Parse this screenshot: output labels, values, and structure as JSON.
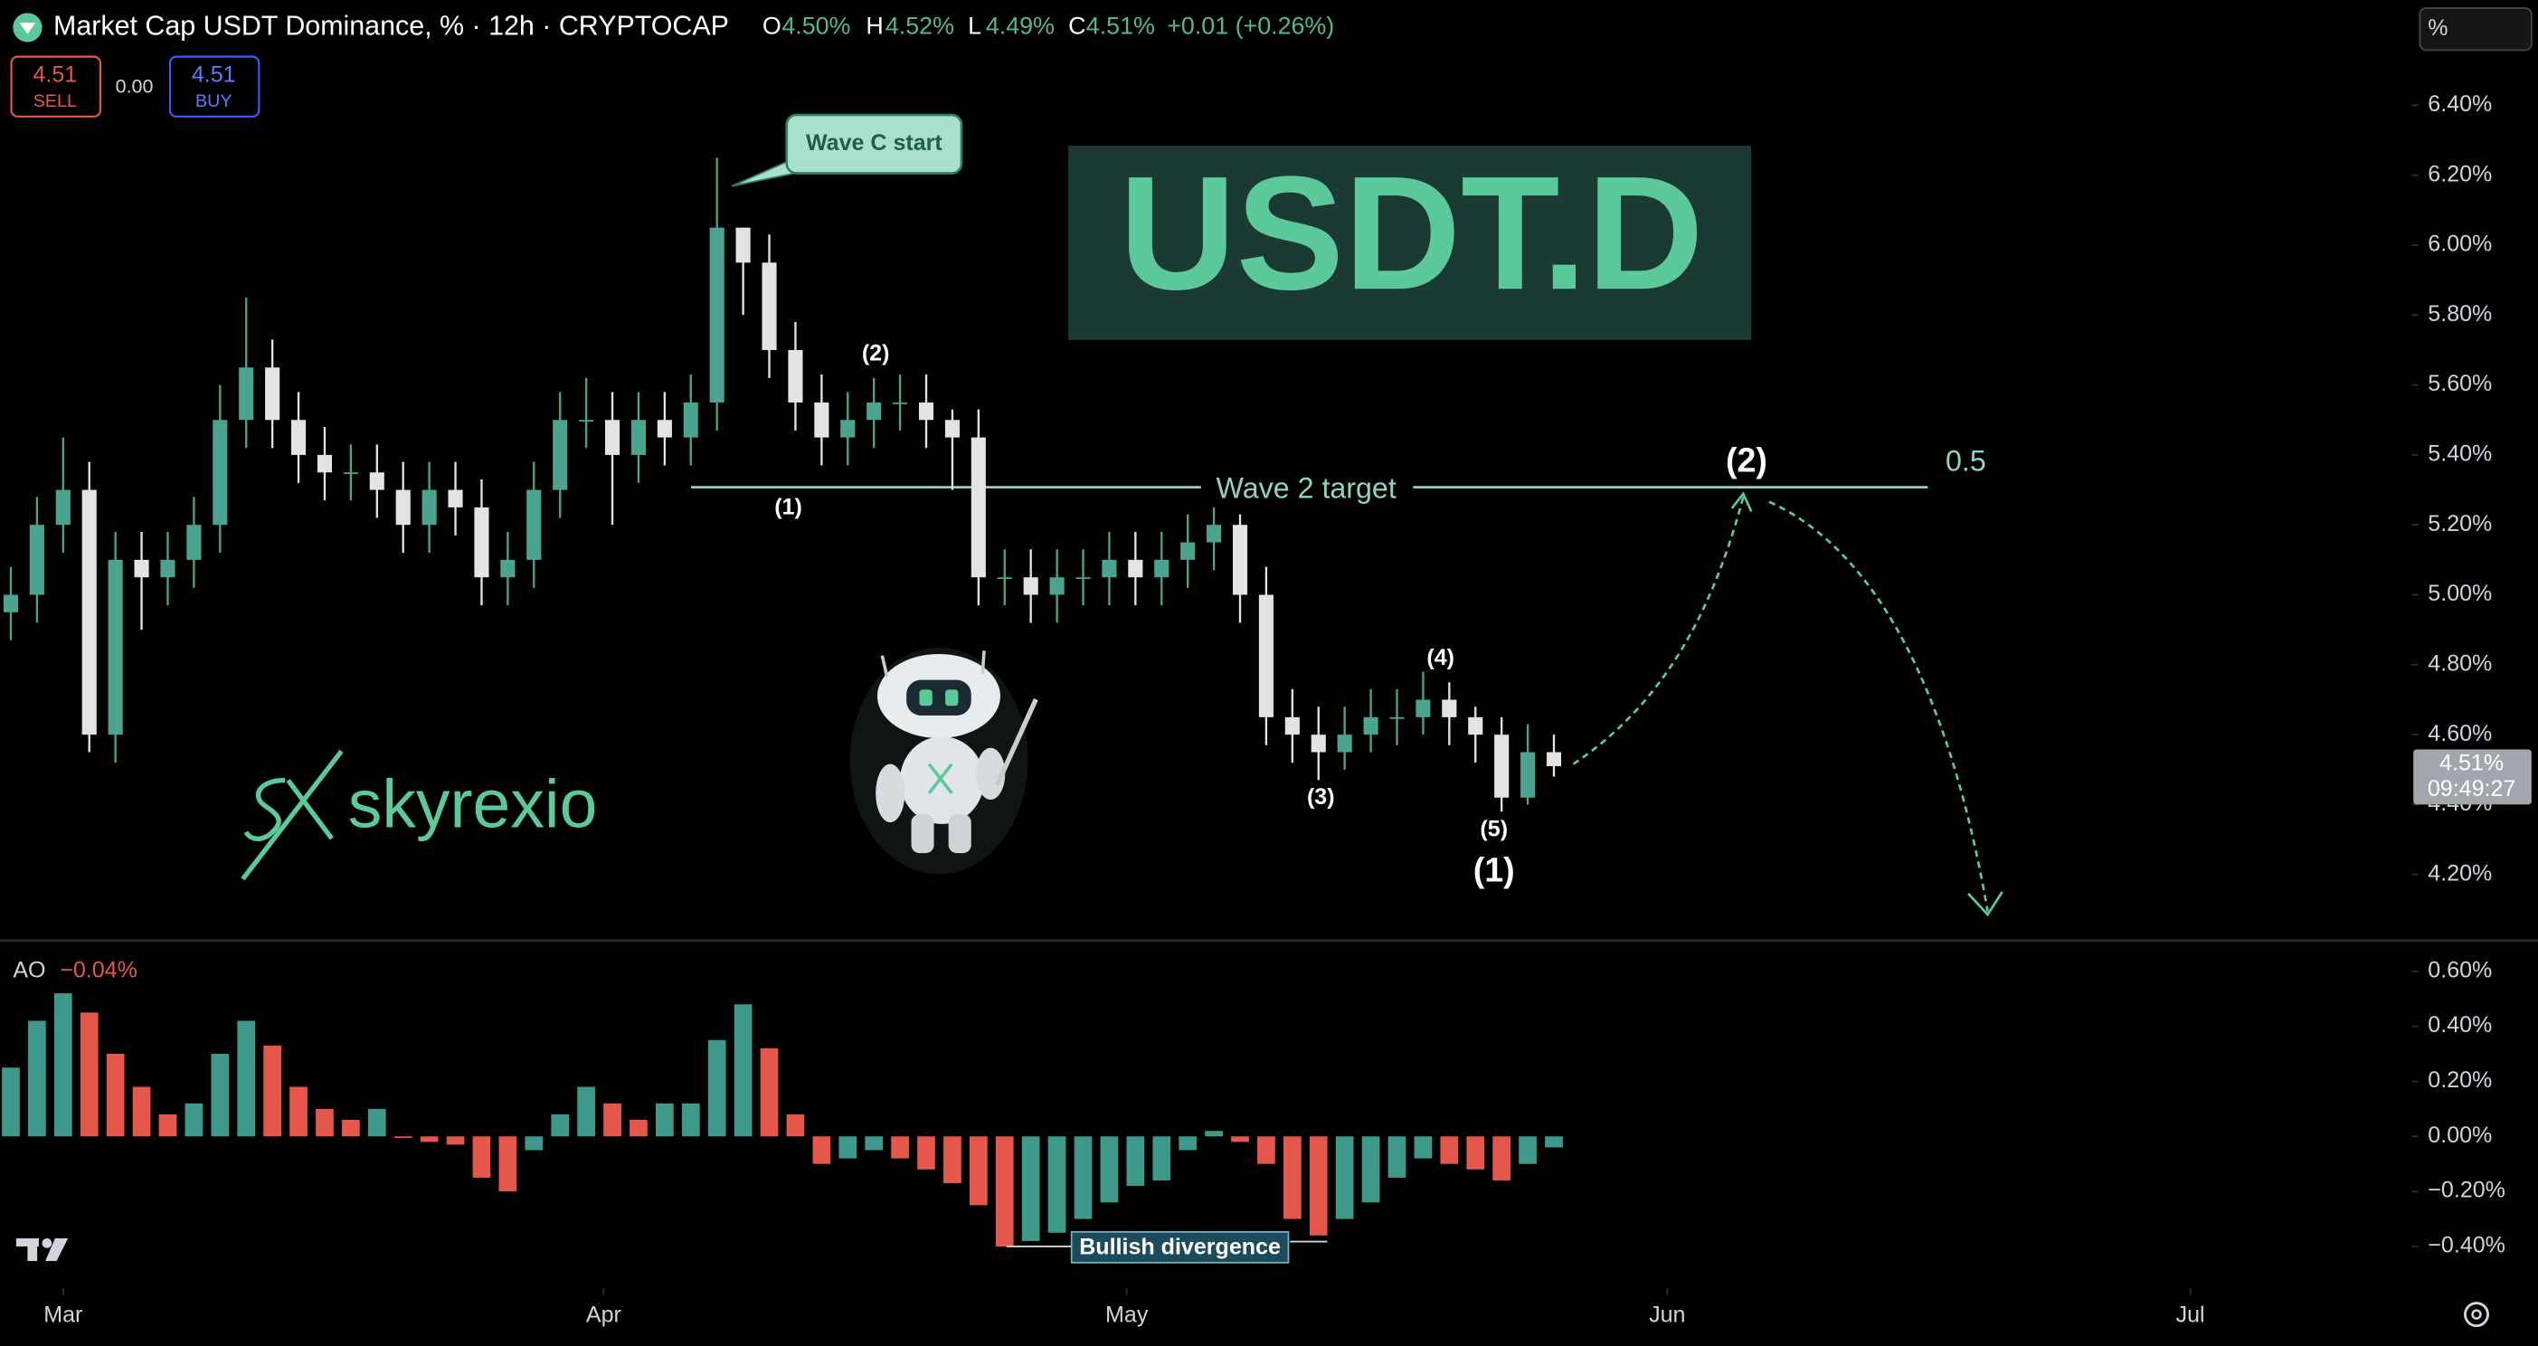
{
  "header": {
    "title": "Market Cap USDT Dominance, % · 12h · CRYPTOCAP",
    "ohlc": [
      {
        "label": "O",
        "value": "4.50%"
      },
      {
        "label": "H",
        "value": "4.52%"
      },
      {
        "label": "L",
        "value": "4.49%"
      },
      {
        "label": "C",
        "value": "4.51%"
      }
    ],
    "change": "+0.01 (+0.26%)",
    "sell": {
      "price": "4.51",
      "label": "SELL"
    },
    "spread": "0.00",
    "buy": {
      "price": "4.51",
      "label": "BUY"
    },
    "scale_button": "%",
    "last_price": "4.51%",
    "countdown": "09:49:27"
  },
  "annotations": {
    "callout": "Wave C start",
    "big_title": "USDT.D",
    "sub_waves": [
      "(1)",
      "(2)",
      "(3)",
      "(4)",
      "(5)"
    ],
    "major_wave_1": "(1)",
    "major_wave_2": "(2)",
    "target_label": "Wave 2 target",
    "fib_level": "0.5",
    "brand": "skyrexio",
    "divergence": "Bullish divergence",
    "indicator_name": "AO",
    "indicator_value": "−0.04%"
  },
  "chart_data": [
    {
      "type": "candlestick",
      "x": [
        -3,
        -1.5,
        0,
        1.5,
        3,
        4.5,
        6,
        7.5,
        9,
        10.5,
        12,
        13.5,
        15,
        16.5,
        18,
        19.5,
        21,
        22.5,
        24,
        25.5,
        27,
        28.5,
        30,
        31.5,
        33,
        34.5,
        36,
        37.5,
        39,
        40.5,
        42,
        43.5,
        45,
        46.5,
        48,
        49.5,
        51,
        52.5,
        54,
        55.5,
        57,
        58.5,
        60,
        61.5,
        63,
        64.5,
        66,
        67.5,
        69,
        70.5,
        72,
        73.5,
        75,
        76.5,
        78,
        79.5,
        81,
        82.5,
        84,
        85.5
      ],
      "open": [
        4.95,
        5.0,
        5.2,
        5.3,
        4.6,
        5.1,
        5.05,
        5.1,
        5.2,
        5.5,
        5.65,
        5.5,
        5.4,
        5.35,
        5.35,
        5.3,
        5.2,
        5.3,
        5.25,
        5.05,
        5.1,
        5.3,
        5.5,
        5.5,
        5.4,
        5.5,
        5.45,
        5.55,
        6.05,
        5.95,
        5.7,
        5.55,
        5.45,
        5.5,
        5.55,
        5.55,
        5.5,
        5.45,
        5.05,
        5.05,
        5.0,
        5.05,
        5.05,
        5.1,
        5.05,
        5.1,
        5.15,
        5.2,
        5.0,
        4.65,
        4.6,
        4.55,
        4.6,
        4.65,
        4.65,
        4.7,
        4.65,
        4.6,
        4.42,
        4.55
      ],
      "high": [
        5.08,
        5.28,
        5.45,
        5.38,
        5.18,
        5.18,
        5.18,
        5.28,
        5.6,
        5.85,
        5.73,
        5.58,
        5.48,
        5.43,
        5.43,
        5.38,
        5.38,
        5.38,
        5.33,
        5.18,
        5.38,
        5.58,
        5.62,
        5.58,
        5.58,
        5.58,
        5.63,
        6.25,
        6.05,
        6.03,
        5.78,
        5.63,
        5.58,
        5.62,
        5.63,
        5.63,
        5.53,
        5.53,
        5.13,
        5.13,
        5.13,
        5.13,
        5.18,
        5.18,
        5.18,
        5.23,
        5.25,
        5.23,
        5.08,
        4.73,
        4.68,
        4.68,
        4.73,
        4.73,
        4.78,
        4.75,
        4.68,
        4.65,
        4.63,
        4.6
      ],
      "low": [
        4.87,
        4.92,
        5.12,
        4.55,
        4.52,
        4.9,
        4.97,
        5.02,
        5.12,
        5.42,
        5.42,
        5.32,
        5.27,
        5.27,
        5.22,
        5.12,
        5.12,
        5.17,
        4.97,
        4.97,
        5.02,
        5.22,
        5.42,
        5.2,
        5.32,
        5.37,
        5.37,
        5.47,
        5.8,
        5.62,
        5.47,
        5.37,
        5.37,
        5.42,
        5.47,
        5.42,
        5.3,
        4.97,
        4.97,
        4.92,
        4.92,
        4.97,
        4.97,
        4.97,
        4.97,
        5.02,
        5.07,
        4.92,
        4.57,
        4.52,
        4.47,
        4.5,
        4.55,
        4.57,
        4.6,
        4.57,
        4.52,
        4.38,
        4.4,
        4.48
      ],
      "close": [
        5.0,
        5.2,
        5.3,
        4.6,
        5.1,
        5.05,
        5.1,
        5.2,
        5.5,
        5.65,
        5.5,
        5.4,
        5.35,
        5.35,
        5.3,
        5.2,
        5.3,
        5.25,
        5.05,
        5.1,
        5.3,
        5.5,
        5.5,
        5.4,
        5.5,
        5.45,
        5.55,
        6.05,
        5.95,
        5.7,
        5.55,
        5.45,
        5.5,
        5.55,
        5.55,
        5.5,
        5.45,
        5.05,
        5.05,
        5.0,
        5.05,
        5.05,
        5.1,
        5.05,
        5.1,
        5.15,
        5.2,
        5.0,
        4.65,
        4.6,
        4.55,
        4.6,
        4.65,
        4.65,
        4.7,
        4.65,
        4.6,
        4.42,
        4.55,
        4.51
      ],
      "up_color": "#4ba48f",
      "down_color": "#e3e3e3",
      "xlim": [
        -3.621,
        134.7
      ],
      "xticks": [
        {
          "value": 0,
          "label": "Mar"
        },
        {
          "value": 31,
          "label": "Apr"
        },
        {
          "value": 61,
          "label": "May"
        },
        {
          "value": 92,
          "label": "Jun"
        },
        {
          "value": 122,
          "label": "Jul"
        }
      ],
      "ylim": [
        4.016,
        6.701
      ],
      "yticks": [
        {
          "value": 4.2,
          "label": "4.20%"
        },
        {
          "value": 4.4,
          "label": "4.40%"
        },
        {
          "value": 4.6,
          "label": "4.60%"
        },
        {
          "value": 4.8,
          "label": "4.80%"
        },
        {
          "value": 5.0,
          "label": "5.00%"
        },
        {
          "value": 5.2,
          "label": "5.20%"
        },
        {
          "value": 5.4,
          "label": "5.40%"
        },
        {
          "value": 5.6,
          "label": "5.60%"
        },
        {
          "value": 5.8,
          "label": "5.80%"
        },
        {
          "value": 6.0,
          "label": "6.00%"
        },
        {
          "value": 6.2,
          "label": "6.20%"
        },
        {
          "value": 6.4,
          "label": "6.40%"
        }
      ]
    },
    {
      "type": "bar",
      "x": [
        -3,
        -1.5,
        0,
        1.5,
        3,
        4.5,
        6,
        7.5,
        9,
        10.5,
        12,
        13.5,
        15,
        16.5,
        18,
        19.5,
        21,
        22.5,
        24,
        25.5,
        27,
        28.5,
        30,
        31.5,
        33,
        34.5,
        36,
        37.5,
        39,
        40.5,
        42,
        43.5,
        45,
        46.5,
        48,
        49.5,
        51,
        52.5,
        54,
        55.5,
        57,
        58.5,
        60,
        61.5,
        63,
        64.5,
        66,
        67.5,
        69,
        70.5,
        72,
        73.5,
        75,
        76.5,
        78,
        79.5,
        81,
        82.5,
        84,
        85.5
      ],
      "values": [
        0.25,
        0.42,
        0.52,
        0.45,
        0.3,
        0.18,
        0.08,
        0.12,
        0.3,
        0.42,
        0.33,
        0.18,
        0.1,
        0.06,
        0.1,
        0.0,
        -0.02,
        -0.03,
        -0.15,
        -0.2,
        -0.05,
        0.08,
        0.18,
        0.12,
        0.06,
        0.12,
        0.12,
        0.35,
        0.48,
        0.32,
        0.08,
        -0.1,
        -0.08,
        -0.05,
        -0.08,
        -0.12,
        -0.17,
        -0.25,
        -0.4,
        -0.38,
        -0.35,
        -0.3,
        -0.24,
        -0.18,
        -0.16,
        -0.05,
        0.02,
        -0.02,
        -0.1,
        -0.3,
        -0.36,
        -0.3,
        -0.24,
        -0.15,
        -0.08,
        -0.1,
        -0.12,
        -0.16,
        -0.1,
        -0.04
      ],
      "up_color": "#3d9a8b",
      "down_color": "#e5574b",
      "ylim": [
        -0.547,
        0.706
      ],
      "yticks": [
        {
          "value": 0.6,
          "label": "0.60%"
        },
        {
          "value": 0.4,
          "label": "0.40%"
        },
        {
          "value": 0.2,
          "label": "0.20%"
        },
        {
          "value": 0.0,
          "label": "0.00%"
        },
        {
          "value": -0.2,
          "label": "−0.20%"
        },
        {
          "value": -0.4,
          "label": "−0.40%"
        }
      ]
    }
  ]
}
